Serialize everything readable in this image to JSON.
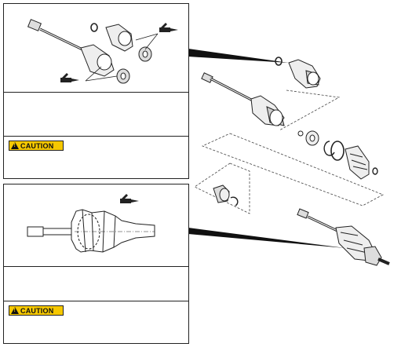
{
  "caution_label": "CAUTION",
  "colors": {
    "caution_bg": "#f6c800",
    "line": "#222222"
  },
  "icons": [
    "grease-gun-icon",
    "warning-triangle-icon"
  ]
}
